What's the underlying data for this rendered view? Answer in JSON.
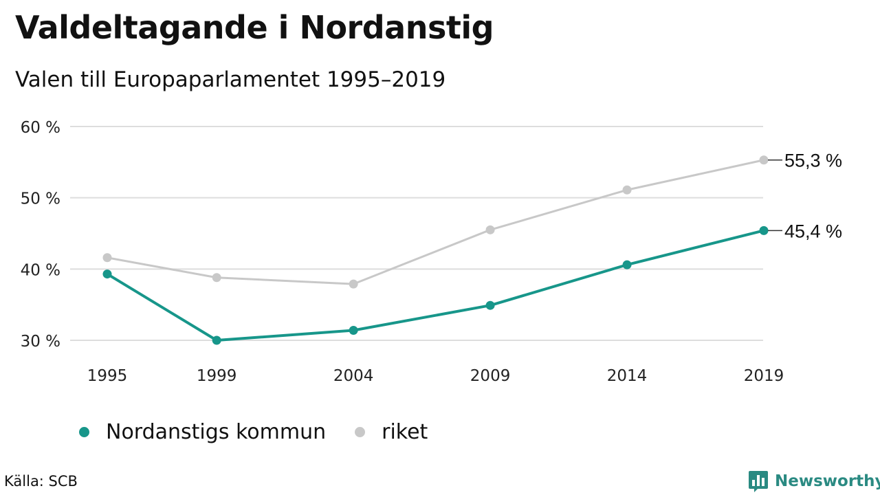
{
  "header": {
    "title": "Valdeltagande i Nordanstig",
    "subtitle": "Valen till Europaparlamentet 1995–2019"
  },
  "footer": {
    "source": "Källa: SCB",
    "brand": "Newsworthy"
  },
  "colors": {
    "nordanstig": "#17968a",
    "riket": "#c8c8c8",
    "grid": "#dddddd",
    "brand": "#2a8a82"
  },
  "chart_data": {
    "type": "line",
    "x": [
      1995,
      1999,
      2004,
      2009,
      2014,
      2019
    ],
    "x_tick_labels": [
      "1995",
      "1999",
      "2004",
      "2009",
      "2014",
      "2019"
    ],
    "y_ticks": [
      30,
      40,
      50,
      60
    ],
    "y_tick_labels": [
      "30 %",
      "40 %",
      "50 %",
      "60 %"
    ],
    "ylim": [
      30,
      60
    ],
    "grid": true,
    "legend_position": "bottom-left",
    "series": [
      {
        "name": "Nordanstigs kommun",
        "values": [
          39.3,
          30.0,
          31.4,
          34.9,
          40.6,
          45.4
        ],
        "end_label": "45,4 %"
      },
      {
        "name": "riket",
        "values": [
          41.6,
          38.8,
          37.9,
          45.5,
          51.1,
          55.3
        ],
        "end_label": "55,3 %"
      }
    ]
  }
}
